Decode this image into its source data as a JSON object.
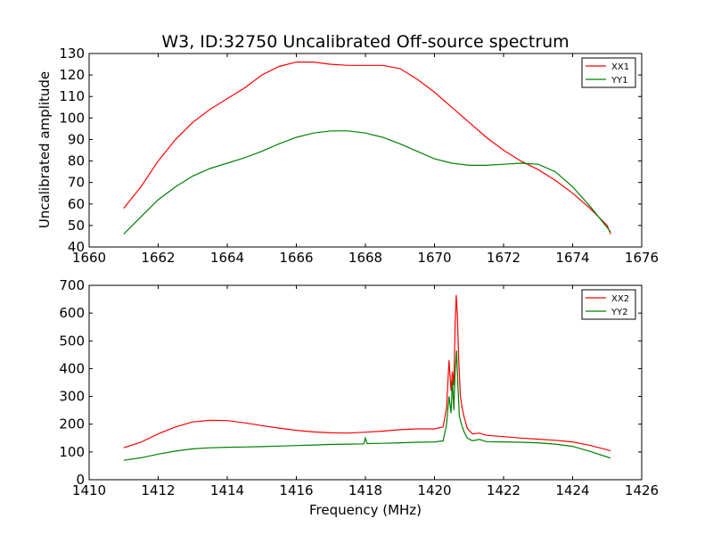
{
  "chart_data": [
    {
      "type": "line",
      "title": "W3, ID:32750 Uncalibrated Off-source spectrum",
      "xlabel": "",
      "ylabel": "Uncalibrated amplitude",
      "xlim": [
        1660,
        1676
      ],
      "ylim": [
        40,
        130
      ],
      "xticks": [
        1660,
        1662,
        1664,
        1666,
        1668,
        1670,
        1672,
        1674,
        1676
      ],
      "yticks": [
        40,
        50,
        60,
        70,
        80,
        90,
        100,
        110,
        120,
        130
      ],
      "grid": false,
      "legend": "top-right",
      "series": [
        {
          "name": "XX1",
          "color": "#ff0000",
          "points": [
            [
              1661.0,
              58
            ],
            [
              1661.5,
              68
            ],
            [
              1662.0,
              80
            ],
            [
              1662.5,
              90
            ],
            [
              1663.0,
              98
            ],
            [
              1663.5,
              104
            ],
            [
              1664.0,
              109
            ],
            [
              1664.5,
              114
            ],
            [
              1665.0,
              120
            ],
            [
              1665.5,
              124
            ],
            [
              1666.0,
              126
            ],
            [
              1666.5,
              126
            ],
            [
              1667.0,
              125
            ],
            [
              1667.5,
              124.5
            ],
            [
              1668.0,
              124.5
            ],
            [
              1668.5,
              124.5
            ],
            [
              1669.0,
              123
            ],
            [
              1669.5,
              118
            ],
            [
              1670.0,
              112
            ],
            [
              1670.5,
              105
            ],
            [
              1671.0,
              98
            ],
            [
              1671.5,
              91
            ],
            [
              1672.0,
              85
            ],
            [
              1672.5,
              80
            ],
            [
              1673.0,
              76
            ],
            [
              1673.5,
              71
            ],
            [
              1674.0,
              65
            ],
            [
              1674.5,
              58
            ],
            [
              1675.0,
              50
            ],
            [
              1675.1,
              46
            ]
          ]
        },
        {
          "name": "YY1",
          "color": "#008000",
          "points": [
            [
              1661.0,
              46
            ],
            [
              1661.5,
              54
            ],
            [
              1662.0,
              62
            ],
            [
              1662.5,
              68
            ],
            [
              1663.0,
              73
            ],
            [
              1663.5,
              76.5
            ],
            [
              1664.0,
              79
            ],
            [
              1664.5,
              81.5
            ],
            [
              1665.0,
              84.5
            ],
            [
              1665.5,
              88
            ],
            [
              1666.0,
              91
            ],
            [
              1666.5,
              93
            ],
            [
              1667.0,
              94
            ],
            [
              1667.5,
              94
            ],
            [
              1668.0,
              93
            ],
            [
              1668.5,
              91
            ],
            [
              1669.0,
              88
            ],
            [
              1669.5,
              84.5
            ],
            [
              1670.0,
              81
            ],
            [
              1670.5,
              79
            ],
            [
              1671.0,
              78
            ],
            [
              1671.5,
              78
            ],
            [
              1672.0,
              78.5
            ],
            [
              1672.5,
              79
            ],
            [
              1673.0,
              78.5
            ],
            [
              1673.5,
              75
            ],
            [
              1674.0,
              68
            ],
            [
              1674.5,
              59
            ],
            [
              1675.0,
              49
            ],
            [
              1675.1,
              47
            ]
          ]
        }
      ]
    },
    {
      "type": "line",
      "title": "",
      "xlabel": "Frequency (MHz)",
      "ylabel": "",
      "xlim": [
        1410,
        1426
      ],
      "ylim": [
        0,
        700
      ],
      "xticks": [
        1410,
        1412,
        1414,
        1416,
        1418,
        1420,
        1422,
        1424,
        1426
      ],
      "yticks": [
        0,
        100,
        200,
        300,
        400,
        500,
        600,
        700
      ],
      "grid": false,
      "legend": "top-right",
      "series": [
        {
          "name": "XX2",
          "color": "#ff0000",
          "points": [
            [
              1411.0,
              115
            ],
            [
              1411.5,
              135
            ],
            [
              1412.0,
              165
            ],
            [
              1412.5,
              190
            ],
            [
              1413.0,
              208
            ],
            [
              1413.5,
              214
            ],
            [
              1414.0,
              213
            ],
            [
              1414.5,
              205
            ],
            [
              1415.0,
              195
            ],
            [
              1415.5,
              186
            ],
            [
              1416.0,
              178
            ],
            [
              1416.5,
              172
            ],
            [
              1417.0,
              169
            ],
            [
              1417.5,
              168
            ],
            [
              1418.0,
              171
            ],
            [
              1418.5,
              175
            ],
            [
              1419.0,
              180
            ],
            [
              1419.5,
              183
            ],
            [
              1420.0,
              183
            ],
            [
              1420.25,
              190
            ],
            [
              1420.35,
              260
            ],
            [
              1420.42,
              430
            ],
            [
              1420.48,
              320
            ],
            [
              1420.52,
              390
            ],
            [
              1420.56,
              340
            ],
            [
              1420.6,
              560
            ],
            [
              1420.63,
              665
            ],
            [
              1420.66,
              600
            ],
            [
              1420.7,
              440
            ],
            [
              1420.75,
              300
            ],
            [
              1420.8,
              260
            ],
            [
              1420.85,
              230
            ],
            [
              1420.95,
              185
            ],
            [
              1421.1,
              165
            ],
            [
              1421.3,
              168
            ],
            [
              1421.5,
              160
            ],
            [
              1422.0,
              155
            ],
            [
              1422.5,
              150
            ],
            [
              1423.0,
              146
            ],
            [
              1423.5,
              142
            ],
            [
              1424.0,
              136
            ],
            [
              1424.5,
              124
            ],
            [
              1425.0,
              108
            ],
            [
              1425.1,
              104
            ]
          ]
        },
        {
          "name": "YY2",
          "color": "#008000",
          "points": [
            [
              1411.0,
              70
            ],
            [
              1411.5,
              79
            ],
            [
              1412.0,
              92
            ],
            [
              1412.5,
              103
            ],
            [
              1413.0,
              111
            ],
            [
              1413.5,
              115
            ],
            [
              1414.0,
              117
            ],
            [
              1414.5,
              118
            ],
            [
              1415.0,
              119
            ],
            [
              1415.5,
              121
            ],
            [
              1416.0,
              123
            ],
            [
              1416.5,
              125
            ],
            [
              1417.0,
              127
            ],
            [
              1417.5,
              128
            ],
            [
              1417.95,
              129
            ],
            [
              1418.0,
              150
            ],
            [
              1418.05,
              130
            ],
            [
              1418.5,
              131
            ],
            [
              1419.0,
              133
            ],
            [
              1419.5,
              135
            ],
            [
              1420.0,
              136
            ],
            [
              1420.25,
              140
            ],
            [
              1420.35,
              200
            ],
            [
              1420.42,
              300
            ],
            [
              1420.48,
              240
            ],
            [
              1420.52,
              360
            ],
            [
              1420.56,
              250
            ],
            [
              1420.6,
              390
            ],
            [
              1420.64,
              465
            ],
            [
              1420.68,
              330
            ],
            [
              1420.72,
              230
            ],
            [
              1420.78,
              200
            ],
            [
              1420.85,
              175
            ],
            [
              1420.95,
              150
            ],
            [
              1421.1,
              140
            ],
            [
              1421.3,
              145
            ],
            [
              1421.5,
              137
            ],
            [
              1422.0,
              136
            ],
            [
              1422.5,
              135
            ],
            [
              1423.0,
              133
            ],
            [
              1423.5,
              128
            ],
            [
              1424.0,
              120
            ],
            [
              1424.5,
              102
            ],
            [
              1425.0,
              82
            ],
            [
              1425.1,
              78
            ]
          ]
        }
      ]
    }
  ]
}
